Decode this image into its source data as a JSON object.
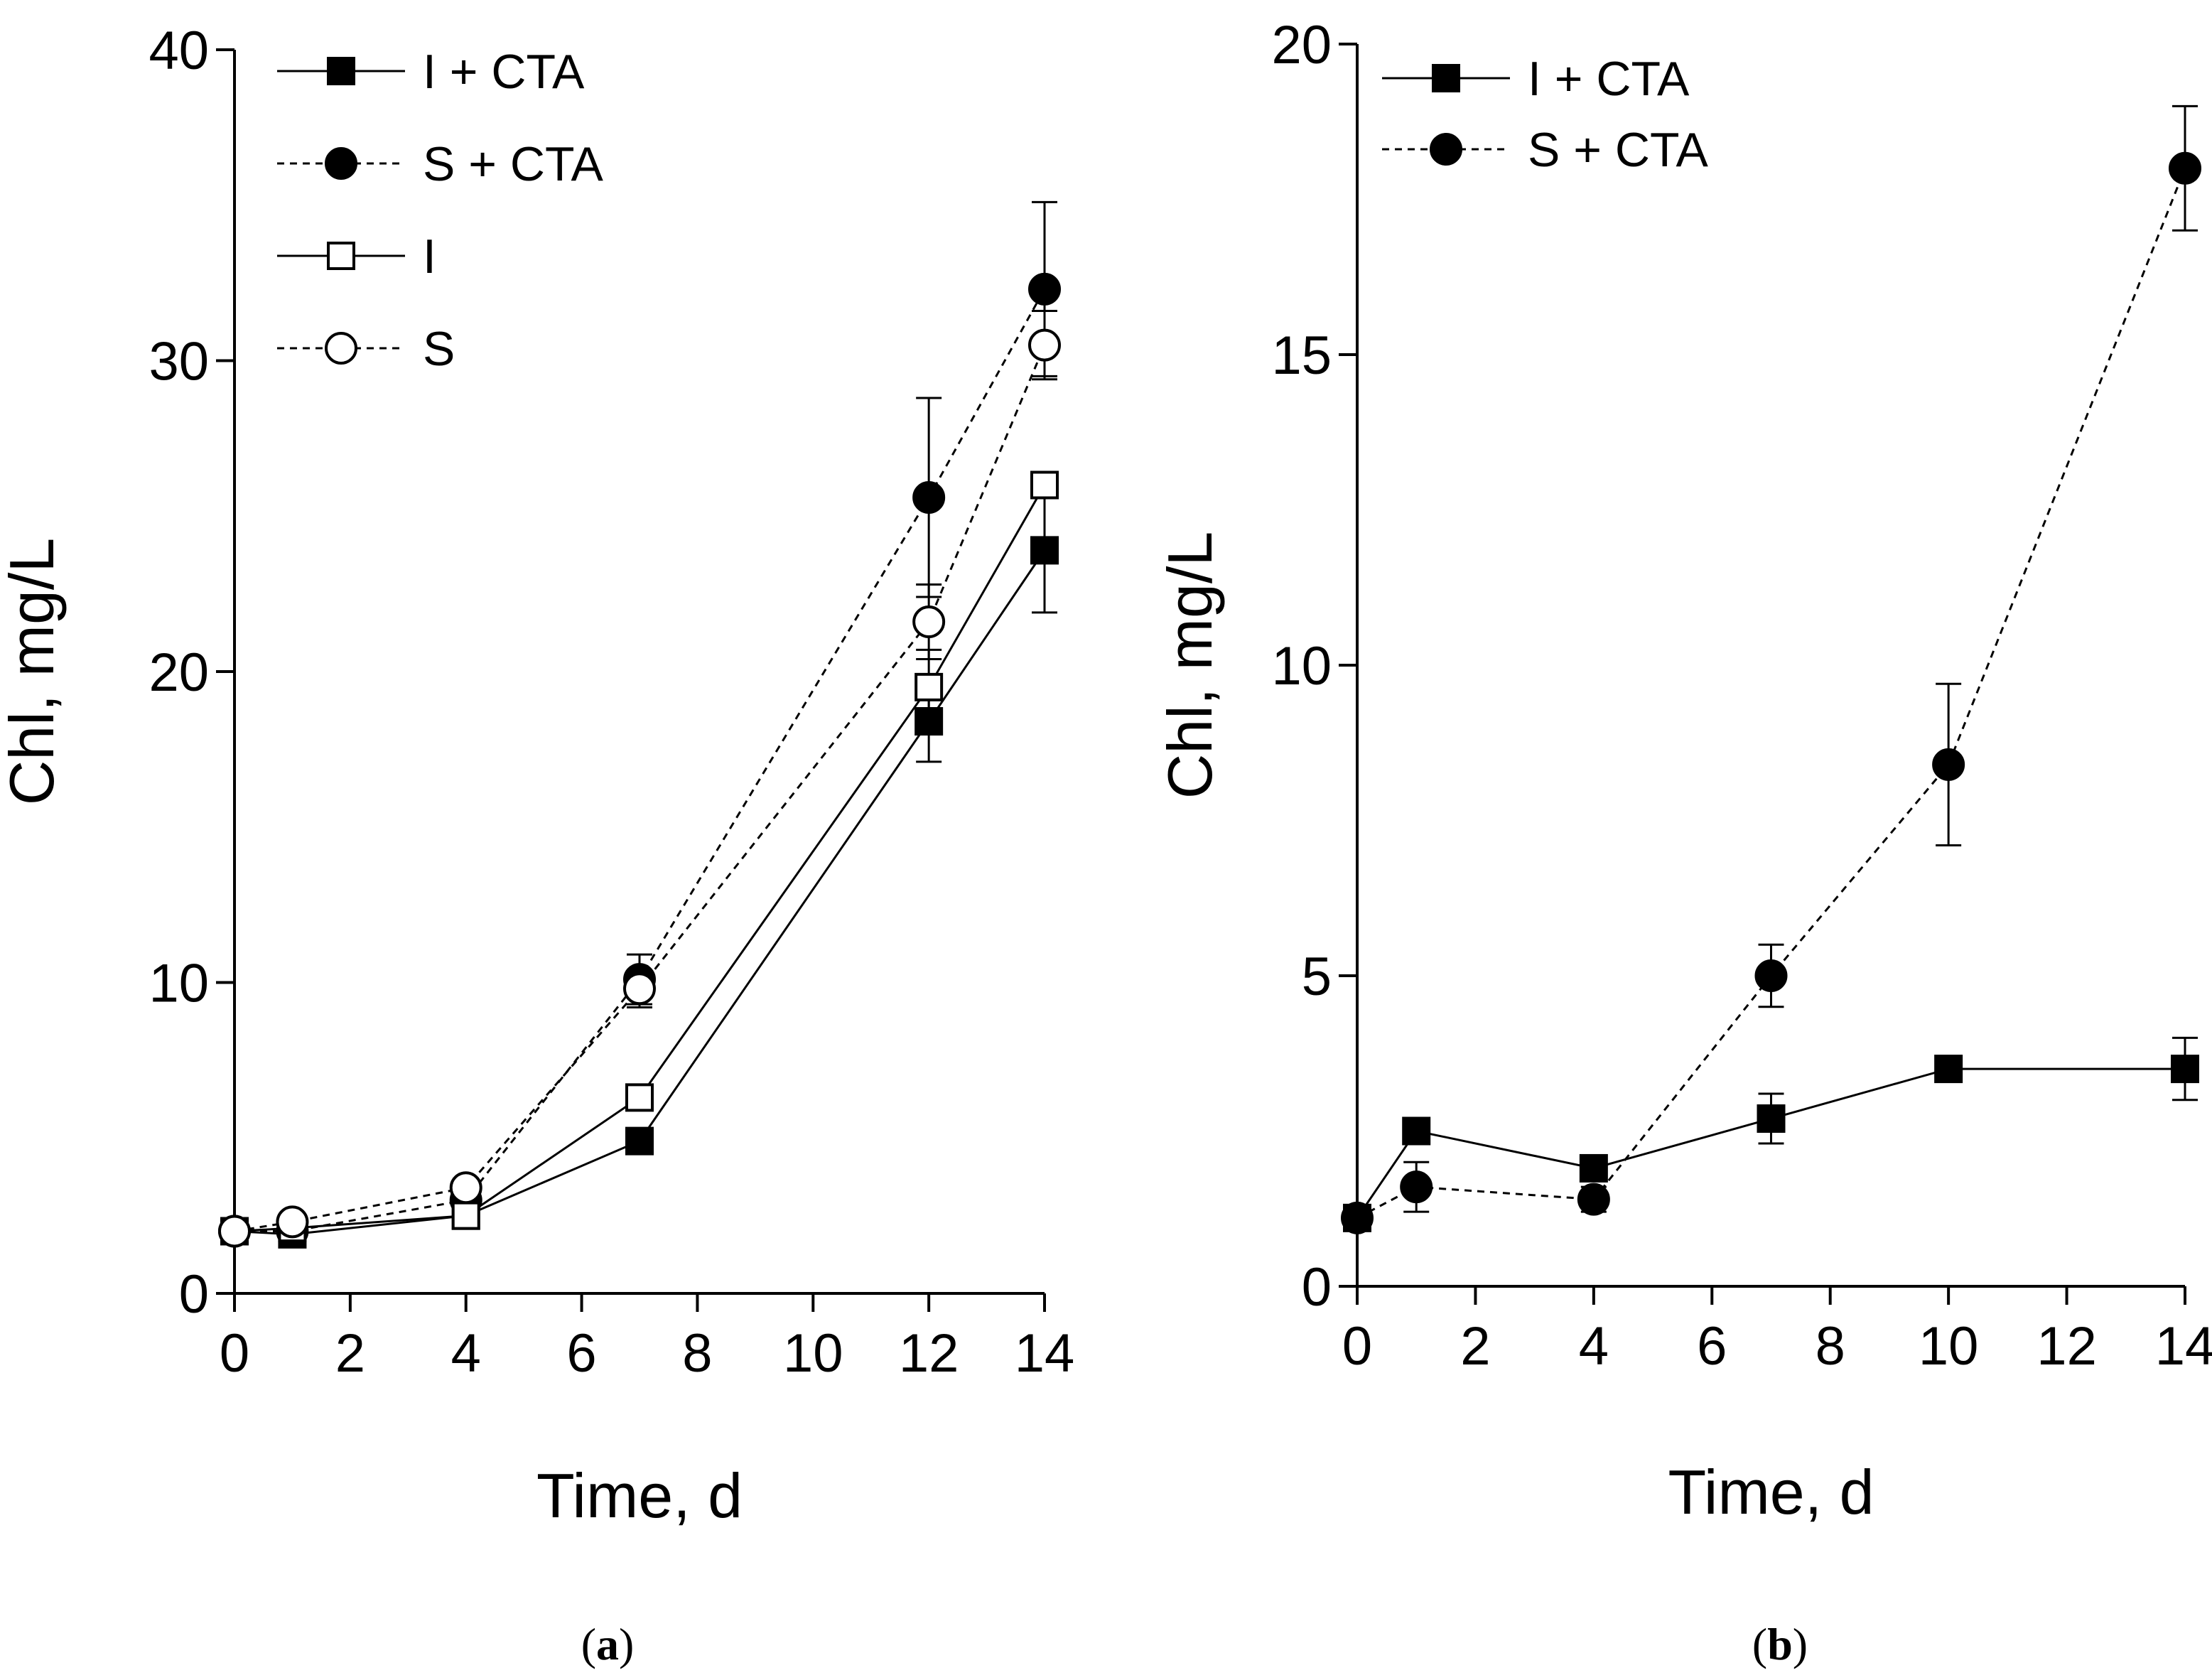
{
  "chart_data": [
    {
      "type": "line",
      "panel": "a",
      "caption": "(a)",
      "caption_letter": "a",
      "xlabel": "Time, d",
      "ylabel": "Chl, mg/L",
      "xlim": [
        0,
        14
      ],
      "ylim": [
        0,
        40
      ],
      "xticks": [
        0,
        2,
        4,
        6,
        8,
        10,
        12,
        14
      ],
      "yticks": [
        0,
        10,
        20,
        30,
        40
      ],
      "grid": false,
      "legend_position": "top-left",
      "series": [
        {
          "name": "I + CTA",
          "line": "solid",
          "marker": "square",
          "filled": true,
          "x": [
            0,
            1,
            4,
            7,
            12,
            14
          ],
          "y": [
            2.0,
            1.9,
            2.5,
            4.9,
            18.4,
            23.9
          ],
          "err": [
            0.2,
            0.2,
            0.2,
            0.4,
            1.3,
            2.0
          ]
        },
        {
          "name": "S + CTA",
          "line": "dashed",
          "marker": "circle",
          "filled": true,
          "x": [
            0,
            1,
            4,
            7,
            12,
            14
          ],
          "y": [
            2.0,
            2.0,
            3.0,
            10.1,
            25.6,
            32.3
          ],
          "err": [
            0.2,
            0.2,
            0.4,
            0.8,
            3.2,
            2.8
          ]
        },
        {
          "name": "I",
          "line": "solid",
          "marker": "square",
          "filled": false,
          "x": [
            0,
            1,
            4,
            7,
            12,
            14
          ],
          "y": [
            2.0,
            2.1,
            2.5,
            6.3,
            19.5,
            26.0
          ],
          "err": [
            0.2,
            0.2,
            0.2,
            0.3,
            1.2,
            0.4
          ]
        },
        {
          "name": "S",
          "line": "dashed",
          "marker": "circle",
          "filled": false,
          "x": [
            0,
            1,
            4,
            7,
            12,
            14
          ],
          "y": [
            2.0,
            2.3,
            3.4,
            9.8,
            21.6,
            30.5
          ],
          "err": [
            0.2,
            0.2,
            0.3,
            0.6,
            1.2,
            1.1
          ]
        }
      ]
    },
    {
      "type": "line",
      "panel": "b",
      "caption": "(b)",
      "caption_letter": "b",
      "xlabel": "Time, d",
      "ylabel": "Chl, mg/L",
      "xlim": [
        0,
        14
      ],
      "ylim": [
        0,
        20
      ],
      "xticks": [
        0,
        2,
        4,
        6,
        8,
        10,
        12,
        14
      ],
      "yticks": [
        0,
        5,
        10,
        15,
        20
      ],
      "grid": false,
      "legend_position": "top-left",
      "series": [
        {
          "name": "I + CTA",
          "line": "solid",
          "marker": "square",
          "filled": true,
          "x": [
            0,
            1,
            4,
            7,
            10,
            14
          ],
          "y": [
            1.1,
            2.5,
            1.9,
            2.7,
            3.5,
            3.5
          ],
          "err": [
            0.1,
            0.2,
            0.2,
            0.4,
            0.1,
            0.5
          ]
        },
        {
          "name": "S + CTA",
          "line": "dashed",
          "marker": "circle",
          "filled": true,
          "x": [
            0,
            1,
            4,
            7,
            10,
            14
          ],
          "y": [
            1.1,
            1.6,
            1.4,
            5.0,
            8.4,
            18.0
          ],
          "err": [
            0.1,
            0.4,
            0.2,
            0.5,
            1.3,
            1.0
          ]
        }
      ]
    }
  ]
}
